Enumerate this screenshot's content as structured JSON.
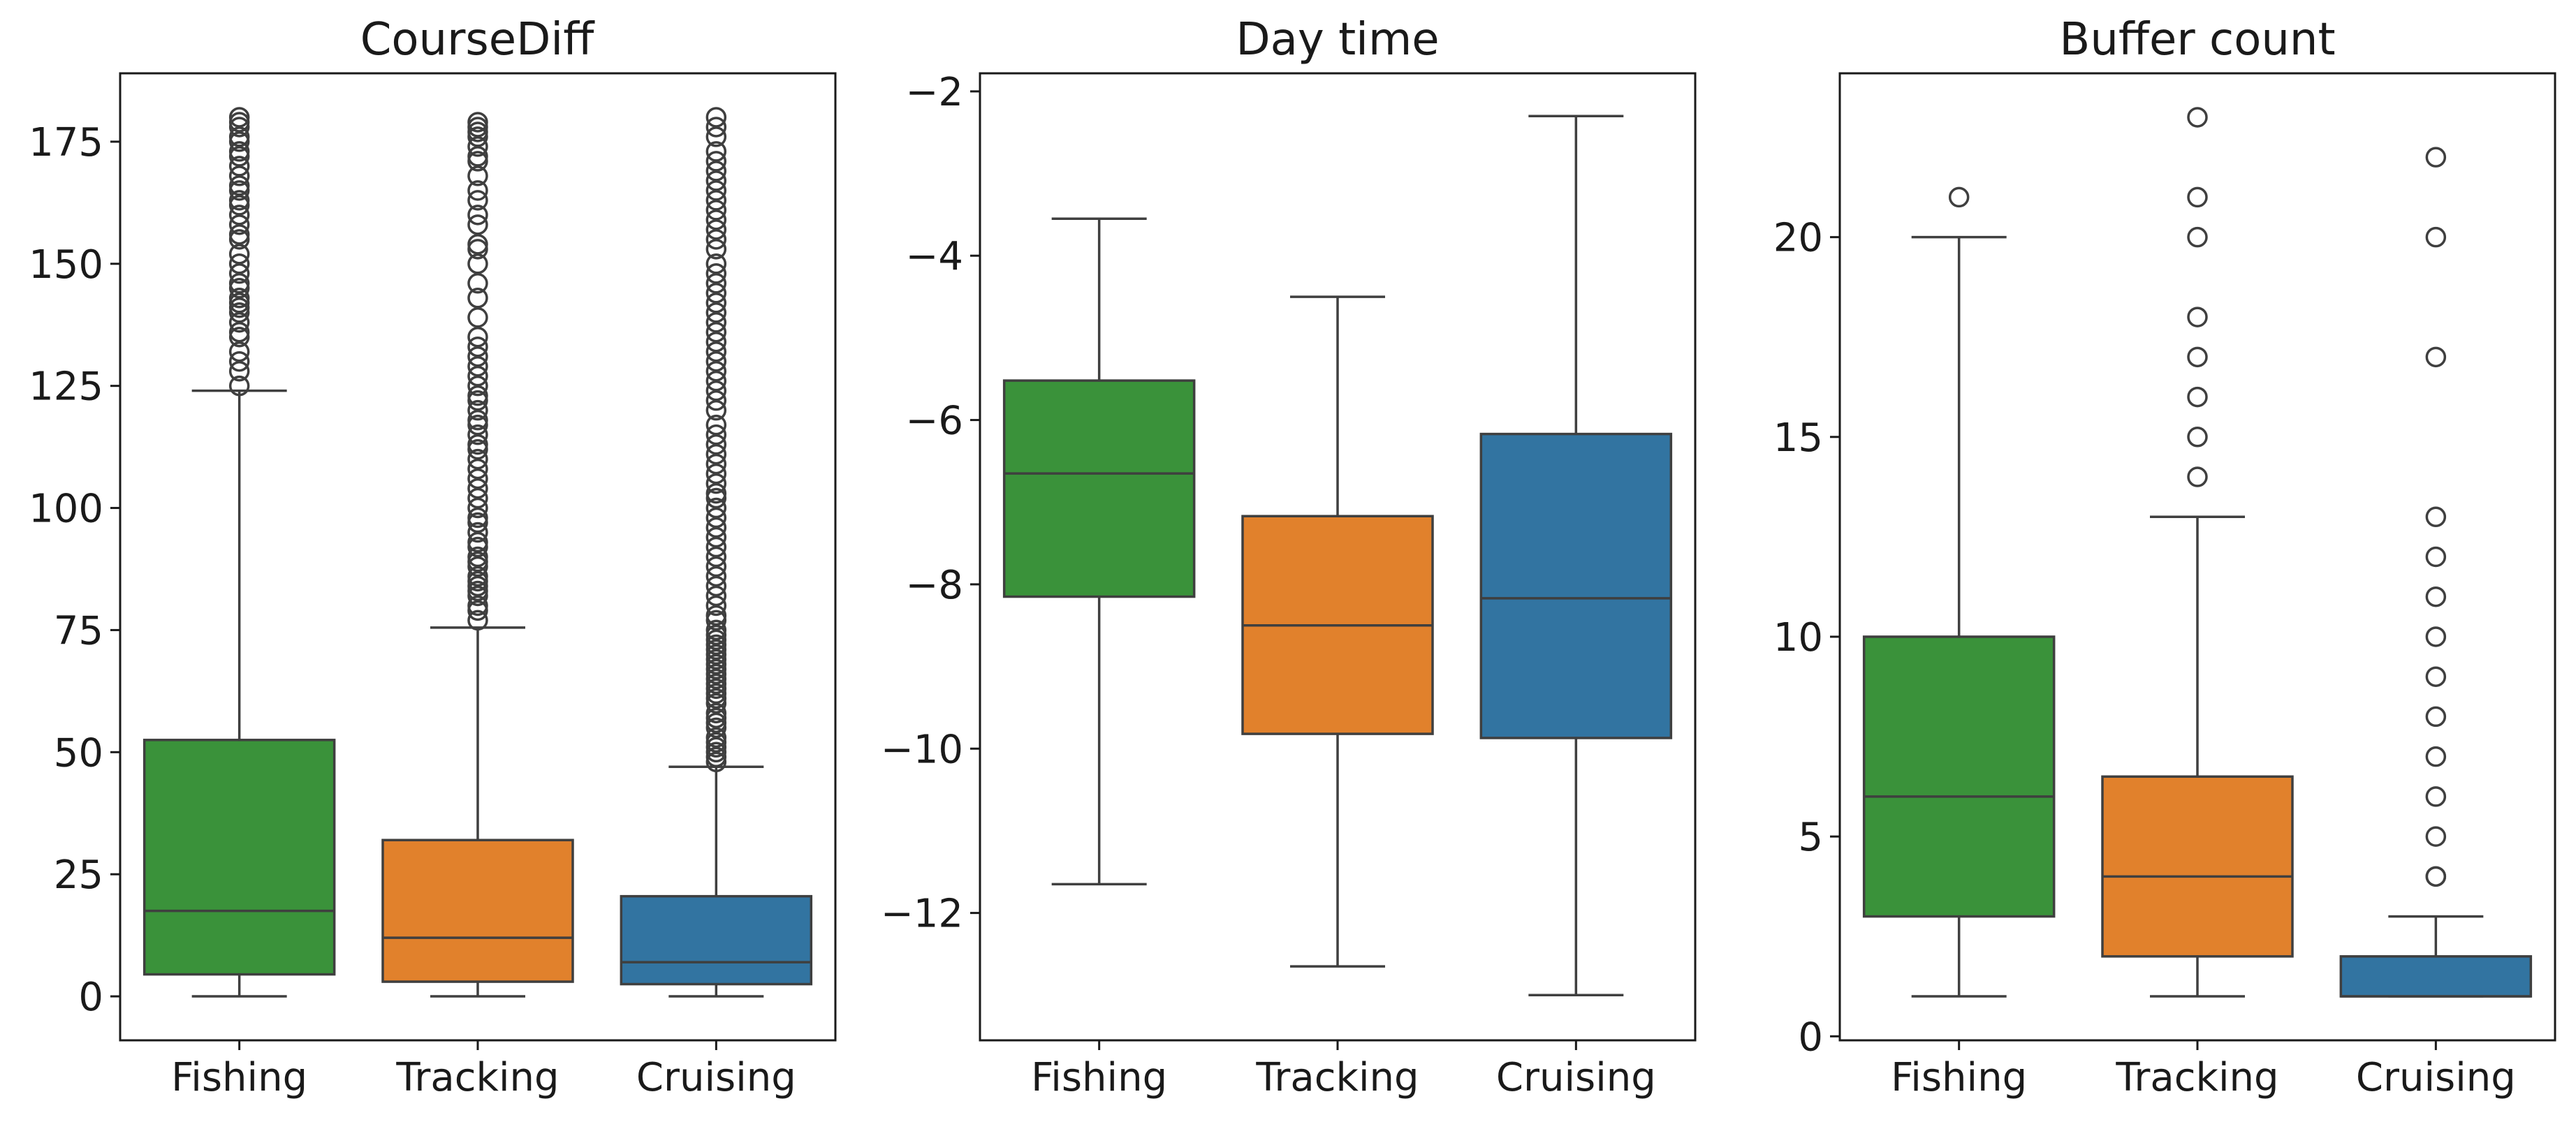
{
  "colors": {
    "Fishing": "#3a923a",
    "Tracking": "#e1812c",
    "Cruising": "#3274a1"
  },
  "chart_data": [
    {
      "type": "box",
      "title": "CourseDiff",
      "categories": [
        "Fishing",
        "Tracking",
        "Cruising"
      ],
      "ylim": [
        -9,
        189
      ],
      "yticks": [
        0,
        25,
        50,
        75,
        100,
        125,
        150,
        175
      ],
      "grid": false,
      "boxes": [
        {
          "category": "Fishing",
          "whislo": 0,
          "q1": 4.5,
          "med": 17.5,
          "q3": 52.5,
          "whishi": 124,
          "fliers": [
            125,
            128,
            130,
            132,
            135,
            136,
            138,
            140,
            141,
            142,
            143,
            145,
            146,
            148,
            150,
            152,
            155,
            156,
            158,
            160,
            162,
            163,
            165,
            166,
            168,
            170,
            172,
            173,
            175,
            176,
            178,
            179,
            180
          ]
        },
        {
          "category": "Tracking",
          "whislo": 0,
          "q1": 3,
          "med": 12,
          "q3": 32,
          "whishi": 75.5,
          "fliers": [
            77,
            79,
            80,
            82,
            83,
            84,
            85,
            86,
            88,
            89,
            90,
            92,
            93,
            95,
            97,
            98,
            100,
            102,
            104,
            106,
            108,
            110,
            112,
            113,
            115,
            117,
            118,
            120,
            122,
            123,
            125,
            127,
            129,
            131,
            133,
            135,
            139,
            143,
            146,
            150,
            153,
            154,
            158,
            160,
            163,
            165,
            168,
            171,
            172,
            174,
            176,
            177,
            178,
            179
          ]
        },
        {
          "category": "Cruising",
          "whislo": 0,
          "q1": 2.5,
          "med": 7,
          "q3": 20.5,
          "whishi": 47,
          "fliers": [
            48,
            49,
            50,
            51,
            52,
            53,
            55,
            56,
            57,
            58,
            60,
            61,
            62,
            63,
            64,
            65,
            66,
            67,
            68,
            69,
            70,
            71,
            72,
            73,
            74,
            75,
            77,
            78,
            80,
            82,
            84,
            86,
            88,
            90,
            92,
            94,
            96,
            98,
            100,
            102,
            103,
            105,
            107,
            109,
            111,
            113,
            115,
            117,
            120,
            122,
            124,
            126,
            128,
            130,
            132,
            134,
            136,
            138,
            140,
            142,
            144,
            146,
            148,
            150,
            153,
            155,
            157,
            159,
            161,
            163,
            165,
            167,
            169,
            171,
            173,
            176,
            178,
            180
          ]
        }
      ]
    },
    {
      "type": "box",
      "title": "Day time",
      "categories": [
        "Fishing",
        "Tracking",
        "Cruising"
      ],
      "ylim": [
        -13.55,
        -1.78
      ],
      "yticks": [
        -12,
        -10,
        -8,
        -6,
        -4,
        -2
      ],
      "grid": false,
      "boxes": [
        {
          "category": "Fishing",
          "whislo": -11.65,
          "q1": -8.15,
          "med": -6.65,
          "q3": -5.52,
          "whishi": -3.55,
          "fliers": []
        },
        {
          "category": "Tracking",
          "whislo": -12.65,
          "q1": -9.82,
          "med": -8.5,
          "q3": -7.17,
          "whishi": -4.5,
          "fliers": []
        },
        {
          "category": "Cruising",
          "whislo": -13.0,
          "q1": -9.87,
          "med": -8.17,
          "q3": -6.17,
          "whishi": -2.3,
          "fliers": []
        }
      ]
    },
    {
      "type": "box",
      "title": "Buffer count",
      "categories": [
        "Fishing",
        "Tracking",
        "Cruising"
      ],
      "ylim": [
        -0.1,
        24.1
      ],
      "yticks": [
        0,
        5,
        10,
        15,
        20
      ],
      "grid": false,
      "boxes": [
        {
          "category": "Fishing",
          "whislo": 1,
          "q1": 3,
          "med": 6,
          "q3": 10,
          "whishi": 20,
          "fliers": [
            21
          ]
        },
        {
          "category": "Tracking",
          "whislo": 1,
          "q1": 2,
          "med": 4,
          "q3": 6.5,
          "whishi": 13,
          "fliers": [
            14,
            15,
            16,
            17,
            18,
            20,
            21,
            23
          ]
        },
        {
          "category": "Cruising",
          "whislo": 1,
          "q1": 1,
          "med": 1,
          "q3": 2,
          "whishi": 3,
          "fliers": [
            4,
            4,
            5,
            6,
            7,
            8,
            9,
            10,
            11,
            12,
            13,
            17,
            20,
            22
          ]
        }
      ]
    }
  ]
}
